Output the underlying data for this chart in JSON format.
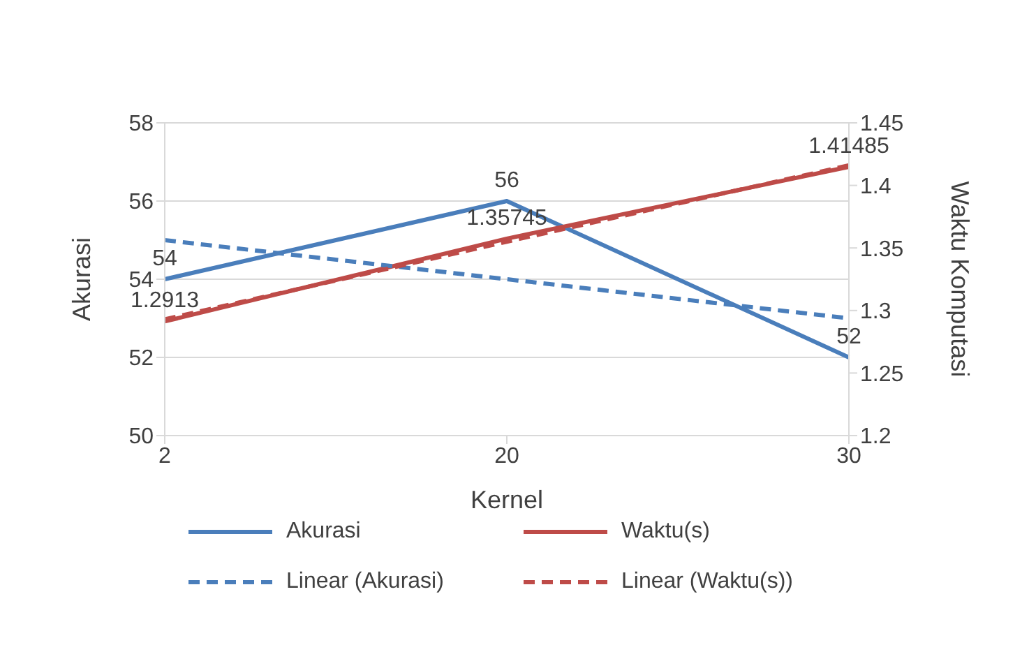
{
  "chart_data": {
    "type": "line",
    "xlabel": "Kernel",
    "ylabel": "Akurasi",
    "y2label": "Waktu Komputasi",
    "categories": [
      "2",
      "20",
      "30"
    ],
    "series": [
      {
        "name": "Akurasi",
        "color": "#4a7ebb",
        "values": [
          54,
          56,
          52
        ],
        "value_labels": [
          "54",
          "56",
          "52"
        ],
        "line_style": "solid"
      },
      {
        "name": "Waktu(s)",
        "color": "#be4b48",
        "values": [
          1.2913,
          1.35745,
          1.41485
        ],
        "value_labels": [
          "1.2913",
          "1.35745",
          "1.41485"
        ],
        "axis": "y2",
        "line_style": "solid"
      },
      {
        "name": "Linear (Akurasi)",
        "color": "#4a7ebb",
        "values": [
          55,
          54,
          53
        ],
        "line_style": "dashed"
      },
      {
        "name": "Linear (Waktu(s))",
        "color": "#be4b48",
        "values": [
          1.293,
          1.355,
          1.416
        ],
        "axis": "y2",
        "line_style": "dashed"
      }
    ],
    "ylim": [
      50,
      58
    ],
    "yticks": [
      50,
      52,
      54,
      56,
      58
    ],
    "y2lim": [
      1.2,
      1.45
    ],
    "y2ticks": [
      1.2,
      1.25,
      1.3,
      1.35,
      1.4,
      1.45
    ],
    "grid": "y",
    "legend": "bottom",
    "marker": "none"
  }
}
